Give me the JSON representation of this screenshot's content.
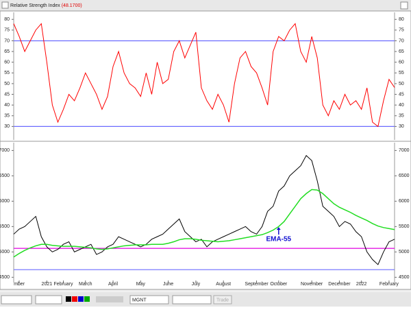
{
  "chart_data": [
    {
      "type": "line",
      "title": "Relative Strength Index",
      "current_label": "(48.1700)",
      "xlim": [
        0,
        69
      ],
      "ylim": [
        25,
        82
      ],
      "yticks": [
        30,
        35,
        40,
        45,
        50,
        55,
        60,
        65,
        70,
        75,
        80
      ],
      "hlines": [
        {
          "value": 30,
          "color": "#6b6bff"
        },
        {
          "value": 70,
          "color": "#6b6bff"
        }
      ],
      "series": [
        {
          "color": "#ff0000",
          "values": [
            78,
            72,
            65,
            70,
            75,
            78,
            60,
            40,
            32,
            38,
            45,
            42,
            48,
            55,
            50,
            45,
            38,
            44,
            58,
            65,
            55,
            50,
            48,
            44,
            55,
            45,
            60,
            50,
            52,
            65,
            70,
            62,
            68,
            74,
            48,
            42,
            38,
            45,
            40,
            32,
            50,
            62,
            65,
            58,
            55,
            48,
            40,
            65,
            72,
            70,
            75,
            78,
            65,
            60,
            72,
            62,
            40,
            35,
            42,
            38,
            45,
            40,
            42,
            38,
            48,
            32,
            30,
            42,
            52,
            48.17
          ]
        }
      ]
    },
    {
      "type": "line",
      "xlim": [
        0,
        69
      ],
      "ylim": [
        4450,
        7100
      ],
      "yticks": [
        4500,
        5000,
        5500,
        6000,
        6500,
        7000
      ],
      "hlines": [
        {
          "value": 5070,
          "color": "#e000e0"
        },
        {
          "value": 4650,
          "color": "#6b6bff"
        }
      ],
      "series": [
        {
          "color": "#000000",
          "values": [
            5350,
            5450,
            5500,
            5600,
            5700,
            5300,
            5100,
            5000,
            5050,
            5150,
            5200,
            5000,
            5050,
            5100,
            5150,
            4950,
            5000,
            5100,
            5150,
            5300,
            5250,
            5200,
            5150,
            5100,
            5150,
            5250,
            5300,
            5350,
            5450,
            5550,
            5650,
            5400,
            5300,
            5200,
            5250,
            5100,
            5200,
            5250,
            5300,
            5350,
            5400,
            5450,
            5500,
            5400,
            5350,
            5500,
            5800,
            5900,
            6200,
            6300,
            6500,
            6600,
            6700,
            6900,
            6800,
            6400,
            5900,
            5800,
            5700,
            5500,
            5600,
            5550,
            5400,
            5300,
            5000,
            4850,
            4750,
            5000,
            5200,
            5250
          ]
        },
        {
          "color": "#22dd22",
          "values": [
            4900,
            4970,
            5030,
            5080,
            5120,
            5150,
            5150,
            5130,
            5120,
            5110,
            5110,
            5110,
            5100,
            5090,
            5080,
            5060,
            5050,
            5060,
            5080,
            5100,
            5120,
            5130,
            5140,
            5140,
            5140,
            5150,
            5150,
            5150,
            5170,
            5200,
            5240,
            5260,
            5260,
            5250,
            5230,
            5220,
            5210,
            5200,
            5210,
            5220,
            5240,
            5260,
            5280,
            5300,
            5320,
            5340,
            5380,
            5430,
            5500,
            5600,
            5750,
            5900,
            6050,
            6150,
            6230,
            6220,
            6150,
            6050,
            5950,
            5880,
            5830,
            5780,
            5720,
            5670,
            5620,
            5560,
            5510,
            5480,
            5460,
            5440
          ]
        }
      ],
      "annotation": {
        "text": "EMA-55",
        "x": 48,
        "y": 5490
      },
      "xticks": [
        {
          "value": 1,
          "label": "mber"
        },
        {
          "value": 6,
          "label": "2021"
        },
        {
          "value": 9,
          "label": "February"
        },
        {
          "value": 13,
          "label": "March"
        },
        {
          "value": 18,
          "label": "April"
        },
        {
          "value": 23,
          "label": "May"
        },
        {
          "value": 28,
          "label": "June"
        },
        {
          "value": 33,
          "label": "July"
        },
        {
          "value": 38,
          "label": "August"
        },
        {
          "value": 44,
          "label": "September"
        },
        {
          "value": 48,
          "label": "October"
        },
        {
          "value": 54,
          "label": "November"
        },
        {
          "value": 59,
          "label": "December"
        },
        {
          "value": 63,
          "label": "2022"
        },
        {
          "value": 68,
          "label": "February"
        }
      ]
    }
  ],
  "toolbar": {
    "symbol": "MGNT",
    "button": "Trade"
  }
}
